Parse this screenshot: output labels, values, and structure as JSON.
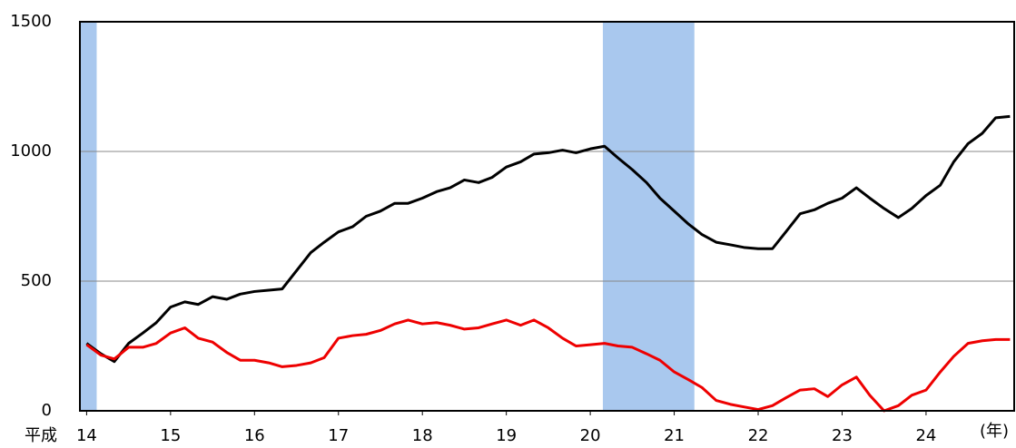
{
  "chart_data": {
    "type": "line",
    "x_prefix": "平成",
    "x_unit": "(年)",
    "x": [
      14,
      14.17,
      14.33,
      14.5,
      14.67,
      14.83,
      15,
      15.17,
      15.33,
      15.5,
      15.67,
      15.83,
      16,
      16.17,
      16.33,
      16.5,
      16.67,
      16.83,
      17,
      17.17,
      17.33,
      17.5,
      17.67,
      17.83,
      18,
      18.17,
      18.33,
      18.5,
      18.67,
      18.83,
      19,
      19.17,
      19.33,
      19.5,
      19.67,
      19.83,
      20,
      20.17,
      20.33,
      20.5,
      20.67,
      20.83,
      21,
      21.17,
      21.33,
      21.5,
      21.67,
      21.83,
      22,
      22.17,
      22.33,
      22.5,
      22.67,
      22.83,
      23,
      23.17,
      23.33,
      23.5,
      23.67,
      23.83,
      24,
      24.17,
      24.33,
      24.5,
      24.67,
      24.83,
      25
    ],
    "series": [
      {
        "color": "#000000",
        "values": [
          260,
          220,
          190,
          260,
          300,
          340,
          400,
          420,
          410,
          440,
          430,
          450,
          460,
          465,
          470,
          540,
          610,
          650,
          690,
          710,
          750,
          770,
          800,
          800,
          820,
          845,
          860,
          890,
          880,
          900,
          940,
          960,
          990,
          995,
          1005,
          995,
          1010,
          1020,
          975,
          930,
          880,
          820,
          770,
          720,
          680,
          650,
          640,
          630,
          625,
          625,
          690,
          760,
          775,
          800,
          820,
          860,
          820,
          780,
          745,
          780,
          830,
          870,
          960,
          1030,
          1070,
          1130,
          1135
        ]
      },
      {
        "color": "#ee0000",
        "values": [
          255,
          215,
          200,
          245,
          245,
          260,
          300,
          320,
          280,
          265,
          225,
          195,
          195,
          185,
          170,
          175,
          185,
          205,
          280,
          290,
          295,
          310,
          335,
          350,
          335,
          340,
          330,
          315,
          320,
          335,
          350,
          330,
          350,
          320,
          280,
          250,
          255,
          260,
          250,
          245,
          220,
          195,
          150,
          120,
          90,
          40,
          25,
          15,
          5,
          20,
          50,
          80,
          85,
          55,
          100,
          130,
          60,
          0,
          20,
          60,
          80,
          150,
          210,
          260,
          270,
          275,
          275
        ]
      }
    ],
    "shaded_periods": [
      [
        13.92,
        14.12
      ],
      [
        20.15,
        21.24
      ]
    ],
    "shade_color": "#a9c8ee",
    "xlim": [
      13.92,
      25.05
    ],
    "xticks": [
      14,
      15,
      16,
      17,
      18,
      19,
      20,
      21,
      22,
      23,
      24
    ],
    "ylim": [
      0,
      1500
    ],
    "yticks": [
      0,
      500,
      1000,
      1500
    ],
    "grid": true
  }
}
